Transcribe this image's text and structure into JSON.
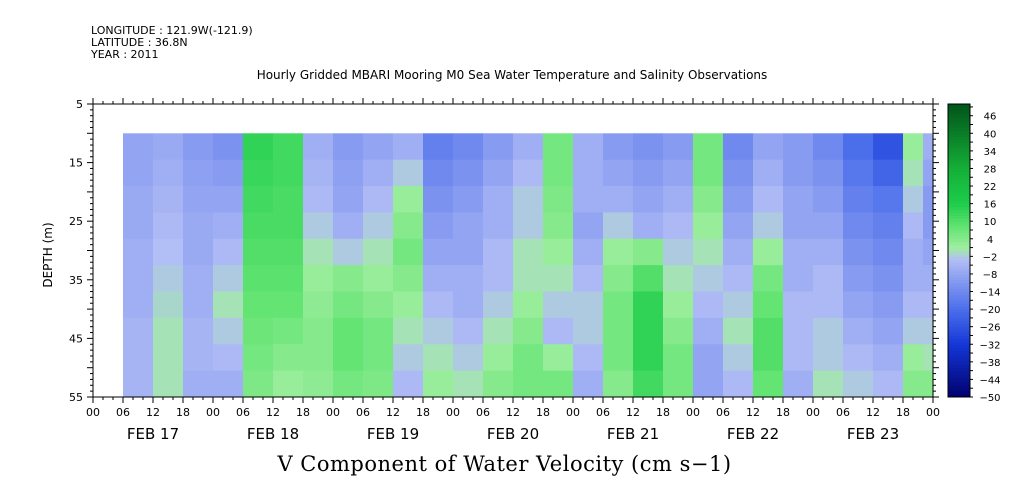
{
  "header": {
    "longitude": "LONGITUDE : 121.9W(-121.9)",
    "latitude": "LATITUDE : 36.8N",
    "year": "YEAR : 2011"
  },
  "chart_data": {
    "type": "heatmap",
    "title": "Hourly Gridded MBARI Mooring M0 Sea Water Temperature and Salinity Observations",
    "xlabel": "V Component of Water Velocity (cm s−1)",
    "ylabel": "DEPTH (m)",
    "yticks": [
      "5",
      "15",
      "25",
      "35",
      "45",
      "55"
    ],
    "ylim": [
      55,
      5
    ],
    "x_hour_ticks": [
      "00",
      "06",
      "12",
      "18",
      "00",
      "06",
      "12",
      "18",
      "00",
      "06",
      "12",
      "18",
      "00",
      "06",
      "12",
      "18",
      "00",
      "06",
      "12",
      "18",
      "00",
      "06",
      "12",
      "18",
      "00",
      "06",
      "12",
      "18",
      "00"
    ],
    "x_date_labels": [
      "FEB 17",
      "FEB 18",
      "FEB 19",
      "FEB 20",
      "FEB 21",
      "FEB 22",
      "FEB 23"
    ],
    "x_range_hours": [
      0,
      168
    ],
    "data_start_hour": 6,
    "data_depth_range": [
      10,
      55
    ],
    "colorbar": {
      "labels": [
        "46",
        "40",
        "34",
        "28",
        "22",
        "16",
        "10",
        "4",
        "−2",
        "−8",
        "−14",
        "−20",
        "−26",
        "−32",
        "−38",
        "−44",
        "−50"
      ],
      "min": -50,
      "max": 50,
      "step": 3
    },
    "columns": [
      {
        "t": 6,
        "v": [
          -8,
          -8,
          -7,
          -7,
          -6,
          -6,
          -6,
          -5,
          -5,
          -5
        ]
      },
      {
        "t": 12,
        "v": [
          -7,
          -6,
          -5,
          -4,
          -3,
          -2,
          -1,
          0,
          0,
          0
        ]
      },
      {
        "t": 18,
        "v": [
          -10,
          -9,
          -8,
          -7,
          -7,
          -6,
          -6,
          -5,
          -5,
          -6
        ]
      },
      {
        "t": 24,
        "v": [
          -12,
          -10,
          -8,
          -6,
          -4,
          -2,
          0,
          -2,
          -4,
          -6
        ]
      },
      {
        "t": 30,
        "v": [
          14,
          13,
          12,
          11,
          10,
          9,
          8,
          7,
          6,
          5
        ]
      },
      {
        "t": 36,
        "v": [
          12,
          12,
          11,
          11,
          10,
          9,
          8,
          6,
          4,
          2
        ]
      },
      {
        "t": 42,
        "v": [
          -6,
          -5,
          -4,
          -2,
          0,
          2,
          3,
          4,
          4,
          3
        ]
      },
      {
        "t": 48,
        "v": [
          -10,
          -9,
          -8,
          -6,
          -2,
          4,
          6,
          8,
          8,
          6
        ]
      },
      {
        "t": 54,
        "v": [
          -8,
          -6,
          -4,
          -2,
          0,
          2,
          4,
          6,
          6,
          5
        ]
      },
      {
        "t": 60,
        "v": [
          -6,
          -2,
          2,
          4,
          6,
          4,
          2,
          0,
          -2,
          -4
        ]
      },
      {
        "t": 66,
        "v": [
          -16,
          -14,
          -12,
          -10,
          -8,
          -6,
          -4,
          -2,
          0,
          2
        ]
      },
      {
        "t": 72,
        "v": [
          -14,
          -12,
          -10,
          -8,
          -8,
          -6,
          -6,
          -4,
          -2,
          0
        ]
      },
      {
        "t": 78,
        "v": [
          -10,
          -8,
          -6,
          -6,
          -4,
          -4,
          -2,
          0,
          2,
          4
        ]
      },
      {
        "t": 84,
        "v": [
          -6,
          -4,
          -2,
          -2,
          0,
          0,
          2,
          4,
          6,
          6
        ]
      },
      {
        "t": 90,
        "v": [
          6,
          6,
          5,
          4,
          2,
          0,
          -2,
          -4,
          2,
          6
        ]
      },
      {
        "t": 96,
        "v": [
          -6,
          -6,
          -6,
          -8,
          -6,
          -4,
          -2,
          -2,
          -4,
          -6
        ]
      },
      {
        "t": 102,
        "v": [
          -10,
          -8,
          -6,
          -2,
          2,
          4,
          6,
          6,
          6,
          4
        ]
      },
      {
        "t": 108,
        "v": [
          -12,
          -10,
          -8,
          -6,
          4,
          10,
          14,
          14,
          14,
          12
        ]
      },
      {
        "t": 114,
        "v": [
          -10,
          -8,
          -6,
          -4,
          -2,
          0,
          2,
          4,
          6,
          6
        ]
      },
      {
        "t": 120,
        "v": [
          6,
          6,
          4,
          2,
          0,
          -2,
          -4,
          -6,
          -8,
          -8
        ]
      },
      {
        "t": 126,
        "v": [
          -14,
          -12,
          -10,
          -8,
          -6,
          -4,
          -2,
          0,
          -2,
          -4
        ]
      },
      {
        "t": 132,
        "v": [
          -8,
          -6,
          -4,
          -2,
          2,
          6,
          8,
          10,
          10,
          8
        ]
      },
      {
        "t": 138,
        "v": [
          -10,
          -10,
          -8,
          -8,
          -6,
          -6,
          -4,
          -4,
          -4,
          -6
        ]
      },
      {
        "t": 144,
        "v": [
          -14,
          -12,
          -10,
          -8,
          -6,
          -4,
          -4,
          -2,
          -2,
          0
        ]
      },
      {
        "t": 150,
        "v": [
          -20,
          -18,
          -16,
          -14,
          -12,
          -10,
          -8,
          -6,
          -4,
          -2
        ]
      },
      {
        "t": 156,
        "v": [
          -26,
          -22,
          -18,
          -16,
          -14,
          -12,
          -10,
          -8,
          -6,
          -4
        ]
      },
      {
        "t": 162,
        "v": [
          2,
          0,
          -2,
          -4,
          -6,
          -6,
          -4,
          -2,
          2,
          4
        ]
      },
      {
        "t": 166,
        "v": [
          -6,
          -8,
          -10,
          -10,
          -8,
          -6,
          -4,
          -2,
          0,
          4
        ]
      },
      {
        "t": 168,
        "v": [
          -10,
          -10,
          -10,
          -8,
          -8,
          -6,
          -2,
          2,
          4,
          8
        ]
      }
    ]
  }
}
